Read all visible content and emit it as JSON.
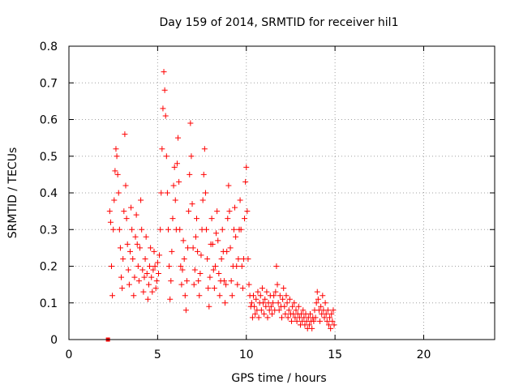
{
  "chart_data": {
    "type": "scatter",
    "title": "Day 159 of 2014, SRMTID for receiver hil1",
    "xlabel": "GPS time / hours",
    "ylabel": "SRMTID / TECUs",
    "xlim": [
      0,
      24
    ],
    "ylim": [
      0,
      0.8
    ],
    "xticks": [
      0,
      5,
      10,
      15,
      20
    ],
    "yticks": [
      0,
      0.1,
      0.2,
      0.3,
      0.4,
      0.5,
      0.6,
      0.7,
      0.8
    ],
    "xtick_labels": [
      "0",
      "5",
      "10",
      "15",
      "20"
    ],
    "ytick_labels": [
      "0",
      "0.1",
      "0.2",
      "0.3",
      "0.4",
      "0.5",
      "0.6",
      "0.7",
      "0.8"
    ],
    "grid": true,
    "marker": "+",
    "color": "#ff0000",
    "outlier": {
      "x": 2.2,
      "y": 0.0
    },
    "series": [
      {
        "name": "SRMTID",
        "points": [
          [
            2.3,
            0.35
          ],
          [
            2.35,
            0.32
          ],
          [
            2.4,
            0.2
          ],
          [
            2.45,
            0.12
          ],
          [
            2.5,
            0.3
          ],
          [
            2.55,
            0.38
          ],
          [
            2.6,
            0.46
          ],
          [
            2.65,
            0.52
          ],
          [
            2.7,
            0.5
          ],
          [
            2.75,
            0.45
          ],
          [
            2.8,
            0.4
          ],
          [
            2.85,
            0.3
          ],
          [
            2.9,
            0.25
          ],
          [
            2.95,
            0.17
          ],
          [
            3.0,
            0.14
          ],
          [
            3.05,
            0.22
          ],
          [
            3.1,
            0.35
          ],
          [
            3.15,
            0.56
          ],
          [
            3.2,
            0.42
          ],
          [
            3.25,
            0.33
          ],
          [
            3.3,
            0.26
          ],
          [
            3.35,
            0.19
          ],
          [
            3.4,
            0.15
          ],
          [
            3.45,
            0.24
          ],
          [
            3.5,
            0.36
          ],
          [
            3.55,
            0.3
          ],
          [
            3.6,
            0.22
          ],
          [
            3.65,
            0.12
          ],
          [
            3.7,
            0.17
          ],
          [
            3.75,
            0.28
          ],
          [
            3.8,
            0.34
          ],
          [
            3.85,
            0.26
          ],
          [
            3.9,
            0.2
          ],
          [
            3.95,
            0.16
          ],
          [
            4.0,
            0.25
          ],
          [
            4.05,
            0.38
          ],
          [
            4.1,
            0.3
          ],
          [
            4.15,
            0.19
          ],
          [
            4.2,
            0.13
          ],
          [
            4.25,
            0.17
          ],
          [
            4.3,
            0.22
          ],
          [
            4.35,
            0.28
          ],
          [
            4.4,
            0.18
          ],
          [
            4.45,
            0.11
          ],
          [
            4.5,
            0.15
          ],
          [
            4.55,
            0.2
          ],
          [
            4.6,
            0.25
          ],
          [
            4.65,
            0.17
          ],
          [
            4.7,
            0.13
          ],
          [
            4.75,
            0.19
          ],
          [
            4.8,
            0.24
          ],
          [
            4.85,
            0.2
          ],
          [
            4.9,
            0.14
          ],
          [
            4.95,
            0.16
          ],
          [
            5.0,
            0.21
          ],
          [
            5.05,
            0.18
          ],
          [
            5.1,
            0.23
          ],
          [
            5.15,
            0.3
          ],
          [
            5.2,
            0.4
          ],
          [
            5.25,
            0.52
          ],
          [
            5.3,
            0.63
          ],
          [
            5.35,
            0.73
          ],
          [
            5.4,
            0.68
          ],
          [
            5.45,
            0.61
          ],
          [
            5.5,
            0.5
          ],
          [
            5.55,
            0.4
          ],
          [
            5.6,
            0.3
          ],
          [
            5.65,
            0.2
          ],
          [
            5.7,
            0.11
          ],
          [
            5.75,
            0.16
          ],
          [
            5.8,
            0.24
          ],
          [
            5.85,
            0.33
          ],
          [
            5.9,
            0.42
          ],
          [
            5.95,
            0.47
          ],
          [
            6.0,
            0.38
          ],
          [
            6.05,
            0.3
          ],
          [
            6.1,
            0.48
          ],
          [
            6.15,
            0.55
          ],
          [
            6.2,
            0.43
          ],
          [
            6.25,
            0.3
          ],
          [
            6.3,
            0.2
          ],
          [
            6.35,
            0.15
          ],
          [
            6.4,
            0.19
          ],
          [
            6.45,
            0.27
          ],
          [
            6.5,
            0.22
          ],
          [
            6.55,
            0.12
          ],
          [
            6.6,
            0.08
          ],
          [
            6.65,
            0.16
          ],
          [
            6.7,
            0.25
          ],
          [
            6.75,
            0.35
          ],
          [
            6.8,
            0.45
          ],
          [
            6.85,
            0.59
          ],
          [
            6.9,
            0.5
          ],
          [
            6.95,
            0.37
          ],
          [
            7.0,
            0.25
          ],
          [
            7.05,
            0.15
          ],
          [
            7.1,
            0.19
          ],
          [
            7.15,
            0.28
          ],
          [
            7.2,
            0.33
          ],
          [
            7.25,
            0.24
          ],
          [
            7.3,
            0.16
          ],
          [
            7.35,
            0.12
          ],
          [
            7.4,
            0.18
          ],
          [
            7.45,
            0.23
          ],
          [
            7.5,
            0.3
          ],
          [
            7.55,
            0.38
          ],
          [
            7.6,
            0.45
          ],
          [
            7.65,
            0.52
          ],
          [
            7.7,
            0.4
          ],
          [
            7.75,
            0.3
          ],
          [
            7.8,
            0.22
          ],
          [
            7.85,
            0.14
          ],
          [
            7.9,
            0.09
          ],
          [
            7.95,
            0.17
          ],
          [
            8.0,
            0.26
          ],
          [
            8.05,
            0.33
          ],
          [
            8.1,
            0.26
          ],
          [
            8.15,
            0.19
          ],
          [
            8.2,
            0.14
          ],
          [
            8.25,
            0.2
          ],
          [
            8.3,
            0.29
          ],
          [
            8.35,
            0.35
          ],
          [
            8.4,
            0.27
          ],
          [
            8.45,
            0.18
          ],
          [
            8.5,
            0.12
          ],
          [
            8.55,
            0.16
          ],
          [
            8.6,
            0.22
          ],
          [
            8.65,
            0.3
          ],
          [
            8.7,
            0.24
          ],
          [
            8.75,
            0.16
          ],
          [
            8.8,
            0.1
          ],
          [
            8.85,
            0.15
          ],
          [
            8.9,
            0.24
          ],
          [
            8.95,
            0.33
          ],
          [
            9.0,
            0.42
          ],
          [
            9.05,
            0.35
          ],
          [
            9.1,
            0.25
          ],
          [
            9.15,
            0.16
          ],
          [
            9.2,
            0.12
          ],
          [
            9.25,
            0.2
          ],
          [
            9.3,
            0.3
          ],
          [
            9.35,
            0.36
          ],
          [
            9.4,
            0.28
          ],
          [
            9.45,
            0.2
          ],
          [
            9.5,
            0.15
          ],
          [
            9.55,
            0.22
          ],
          [
            9.6,
            0.3
          ],
          [
            9.65,
            0.38
          ],
          [
            9.7,
            0.3
          ],
          [
            9.75,
            0.2
          ],
          [
            9.8,
            0.14
          ],
          [
            9.85,
            0.22
          ],
          [
            9.9,
            0.33
          ],
          [
            9.95,
            0.43
          ],
          [
            10.0,
            0.47
          ],
          [
            10.05,
            0.35
          ],
          [
            10.1,
            0.22
          ],
          [
            10.15,
            0.15
          ],
          [
            10.2,
            0.12
          ],
          [
            10.25,
            0.09
          ],
          [
            10.3,
            0.1
          ],
          [
            10.35,
            0.06
          ],
          [
            10.4,
            0.12
          ],
          [
            10.45,
            0.09
          ],
          [
            10.5,
            0.07
          ],
          [
            10.55,
            0.11
          ],
          [
            10.6,
            0.08
          ],
          [
            10.65,
            0.13
          ],
          [
            10.7,
            0.06
          ],
          [
            10.75,
            0.1
          ],
          [
            10.8,
            0.12
          ],
          [
            10.85,
            0.08
          ],
          [
            10.9,
            0.14
          ],
          [
            10.95,
            0.1
          ],
          [
            11.0,
            0.07
          ],
          [
            11.05,
            0.11
          ],
          [
            11.1,
            0.09
          ],
          [
            11.15,
            0.13
          ],
          [
            11.2,
            0.06
          ],
          [
            11.25,
            0.1
          ],
          [
            11.3,
            0.08
          ],
          [
            11.35,
            0.12
          ],
          [
            11.4,
            0.09
          ],
          [
            11.45,
            0.07
          ],
          [
            11.5,
            0.1
          ],
          [
            11.55,
            0.12
          ],
          [
            11.6,
            0.08
          ],
          [
            11.65,
            0.13
          ],
          [
            11.7,
            0.2
          ],
          [
            11.75,
            0.15
          ],
          [
            11.8,
            0.1
          ],
          [
            11.85,
            0.08
          ],
          [
            11.9,
            0.12
          ],
          [
            11.95,
            0.09
          ],
          [
            12.0,
            0.06
          ],
          [
            12.05,
            0.11
          ],
          [
            12.1,
            0.14
          ],
          [
            12.15,
            0.09
          ],
          [
            12.2,
            0.07
          ],
          [
            12.25,
            0.12
          ],
          [
            12.3,
            0.1
          ],
          [
            12.35,
            0.06
          ],
          [
            12.4,
            0.08
          ],
          [
            12.45,
            0.11
          ],
          [
            12.5,
            0.07
          ],
          [
            12.55,
            0.05
          ],
          [
            12.6,
            0.09
          ],
          [
            12.65,
            0.07
          ],
          [
            12.7,
            0.1
          ],
          [
            12.75,
            0.06
          ],
          [
            12.8,
            0.08
          ],
          [
            12.85,
            0.05
          ],
          [
            12.9,
            0.07
          ],
          [
            12.95,
            0.09
          ],
          [
            13.0,
            0.06
          ],
          [
            13.05,
            0.04
          ],
          [
            13.1,
            0.07
          ],
          [
            13.15,
            0.05
          ],
          [
            13.2,
            0.08
          ],
          [
            13.25,
            0.06
          ],
          [
            13.3,
            0.04
          ],
          [
            13.35,
            0.07
          ],
          [
            13.4,
            0.05
          ],
          [
            13.45,
            0.03
          ],
          [
            13.5,
            0.06
          ],
          [
            13.55,
            0.04
          ],
          [
            13.6,
            0.07
          ],
          [
            13.65,
            0.05
          ],
          [
            13.7,
            0.03
          ],
          [
            13.75,
            0.06
          ],
          [
            13.8,
            0.05
          ],
          [
            13.85,
            0.08
          ],
          [
            13.9,
            0.06
          ],
          [
            13.95,
            0.1
          ],
          [
            14.0,
            0.13
          ],
          [
            14.05,
            0.11
          ],
          [
            14.1,
            0.08
          ],
          [
            14.15,
            0.05
          ],
          [
            14.2,
            0.09
          ],
          [
            14.25,
            0.07
          ],
          [
            14.3,
            0.12
          ],
          [
            14.35,
            0.08
          ],
          [
            14.4,
            0.06
          ],
          [
            14.45,
            0.1
          ],
          [
            14.5,
            0.07
          ],
          [
            14.55,
            0.05
          ],
          [
            14.6,
            0.08
          ],
          [
            14.65,
            0.04
          ],
          [
            14.7,
            0.06
          ],
          [
            14.75,
            0.03
          ],
          [
            14.8,
            0.07
          ],
          [
            14.85,
            0.05
          ],
          [
            14.9,
            0.08
          ],
          [
            14.95,
            0.04
          ]
        ]
      }
    ]
  }
}
